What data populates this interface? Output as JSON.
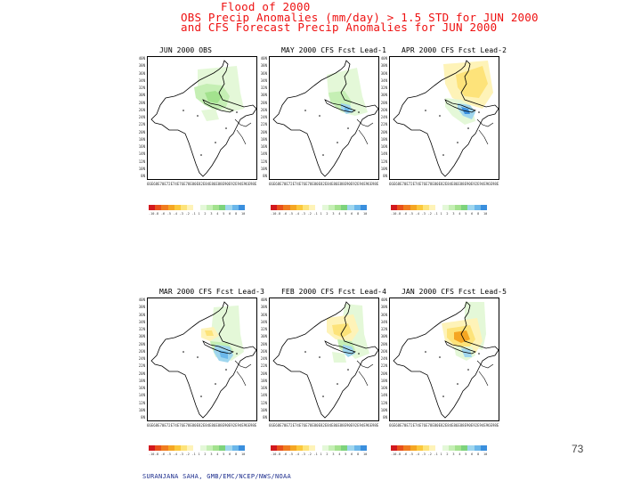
{
  "title": {
    "line1": "Flood of 2000",
    "line2": "OBS Precip Anomalies (mm/day) > 1.5 STD for JUN 2000",
    "line3": "and CFS Forecast Precip Anomalies for JUN 2000"
  },
  "panels": [
    {
      "title": "JUN 2000 OBS",
      "anomaly": "obs"
    },
    {
      "title": "MAY 2000 CFS Fcst Lead-1",
      "anomaly": "lead1"
    },
    {
      "title": "APR 2000 CFS Fcst Lead-2",
      "anomaly": "lead2"
    },
    {
      "title": "MAR 2000 CFS Fcst Lead-3",
      "anomaly": "lead3"
    },
    {
      "title": "FEB 2000 CFS Fcst Lead-4",
      "anomaly": "lead4"
    },
    {
      "title": "JAN 2000 CFS Fcst Lead-5",
      "anomaly": "lead5"
    }
  ],
  "lat_labels": [
    "40N",
    "38N",
    "36N",
    "34N",
    "32N",
    "30N",
    "28N",
    "26N",
    "24N",
    "22N",
    "20N",
    "18N",
    "16N",
    "14N",
    "12N",
    "10N",
    "8N"
  ],
  "lon_labels": [
    "66E",
    "68E",
    "70E",
    "72E",
    "74E",
    "76E",
    "78E",
    "80E",
    "82E",
    "84E",
    "86E",
    "88E",
    "90E",
    "92E",
    "94E",
    "96E",
    "98E"
  ],
  "colorbar": {
    "colors": [
      "#d2191e",
      "#e8501b",
      "#f07c1f",
      "#f5a623",
      "#fbc83c",
      "#fde37a",
      "#fef3b8",
      "#ffffff",
      "#e4f8d8",
      "#c5efb4",
      "#a3e28e",
      "#7dd37c",
      "#9fd6ee",
      "#6bb7ea",
      "#3a8fde"
    ],
    "labels": [
      "-10",
      "-8",
      "-6",
      "-5",
      "-4",
      "-3",
      "-2",
      "-1",
      "1",
      "2",
      "3",
      "4",
      "5",
      "6",
      "8",
      "10"
    ]
  },
  "page_number": "73",
  "credit": "SURANJANA SAHA, GMB/EMC/NCEP/NWS/NOAA"
}
